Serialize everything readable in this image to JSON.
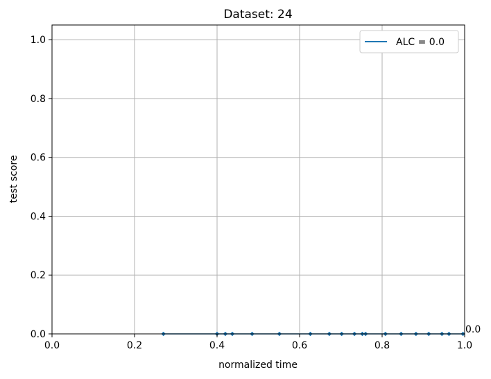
{
  "chart_data": {
    "type": "line",
    "title": "Dataset: 24",
    "xlabel": "normalized time",
    "ylabel": "test score",
    "xlim": [
      0.0,
      1.0
    ],
    "ylim": [
      0.0,
      1.0
    ],
    "xticks": [
      "0.0",
      "0.2",
      "0.4",
      "0.6",
      "0.8",
      "1.0"
    ],
    "yticks": [
      "0.0",
      "0.2",
      "0.4",
      "0.6",
      "0.8",
      "1.0"
    ],
    "grid": true,
    "legend_position": "top-right",
    "series": [
      {
        "name": "ALC = 0.0",
        "color": "#1f77b4",
        "marker": "diamond",
        "points": [
          {
            "x": 0.27,
            "y": 0.0
          },
          {
            "x": 0.4,
            "y": 0.0
          },
          {
            "x": 0.42,
            "y": 0.0
          },
          {
            "x": 0.437,
            "y": 0.0
          },
          {
            "x": 0.485,
            "y": 0.0
          },
          {
            "x": 0.551,
            "y": 0.0
          },
          {
            "x": 0.626,
            "y": 0.0
          },
          {
            "x": 0.672,
            "y": 0.0
          },
          {
            "x": 0.702,
            "y": 0.0
          },
          {
            "x": 0.733,
            "y": 0.0
          },
          {
            "x": 0.752,
            "y": 0.0
          },
          {
            "x": 0.76,
            "y": 0.0
          },
          {
            "x": 0.808,
            "y": 0.0
          },
          {
            "x": 0.846,
            "y": 0.0
          },
          {
            "x": 0.882,
            "y": 0.0
          },
          {
            "x": 0.913,
            "y": 0.0
          },
          {
            "x": 0.945,
            "y": 0.0
          },
          {
            "x": 0.962,
            "y": 0.0
          },
          {
            "x": 0.996,
            "y": 0.0
          }
        ]
      }
    ],
    "annotations": [
      {
        "text": "0.0",
        "x": 1.0,
        "y": 0.0
      }
    ]
  }
}
